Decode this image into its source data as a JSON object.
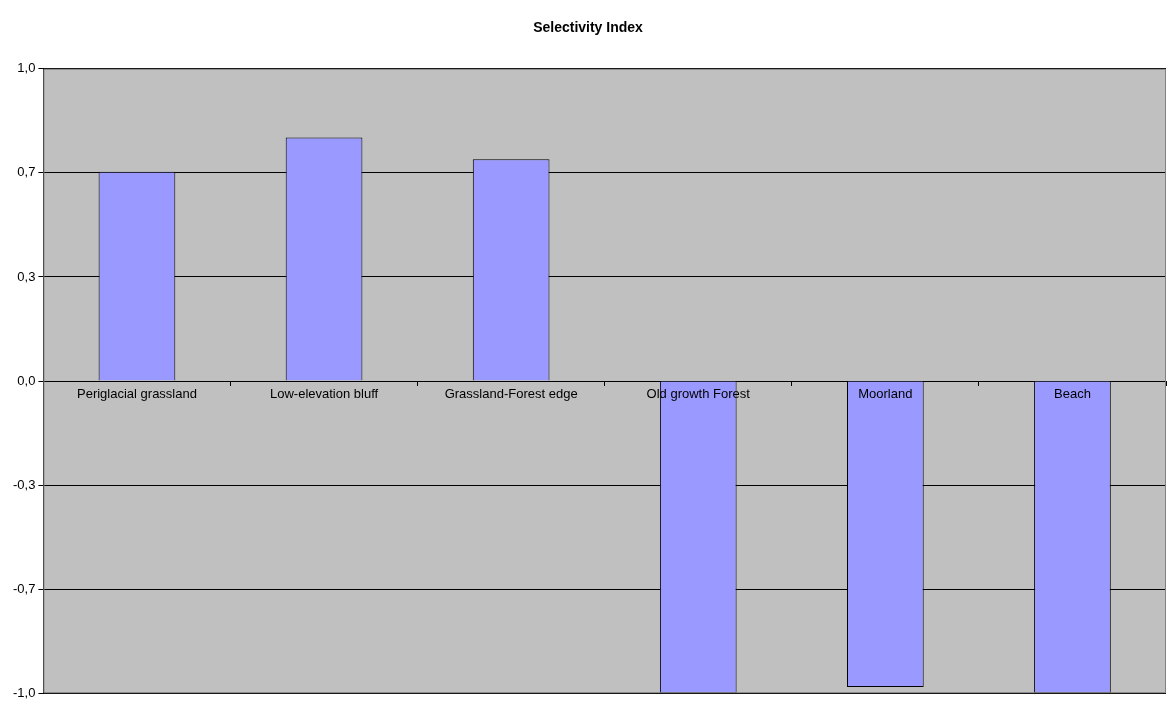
{
  "chart_data": {
    "type": "bar",
    "title": "Selectivity Index",
    "categories": [
      "Periglacial grassland",
      "Low-elevation bluff",
      "Grassland-Forest edge",
      "Old growth Forest",
      "Moorland",
      "Beach"
    ],
    "values": [
      0.67,
      0.78,
      0.71,
      -1.0,
      -0.98,
      -1.0
    ],
    "color": "#9999ff",
    "ylim": [
      -1,
      1
    ],
    "yticks": [
      {
        "value": -1,
        "label": "-1,0"
      },
      {
        "value": -0.6667,
        "label": "-0,7"
      },
      {
        "value": -0.3333,
        "label": "-0,3"
      },
      {
        "value": 0,
        "label": "0,0"
      },
      {
        "value": 0.3333,
        "label": "0,3"
      },
      {
        "value": 0.6667,
        "label": "0,7"
      },
      {
        "value": 1,
        "label": "1,0"
      }
    ],
    "grid": "y",
    "legend": false
  }
}
